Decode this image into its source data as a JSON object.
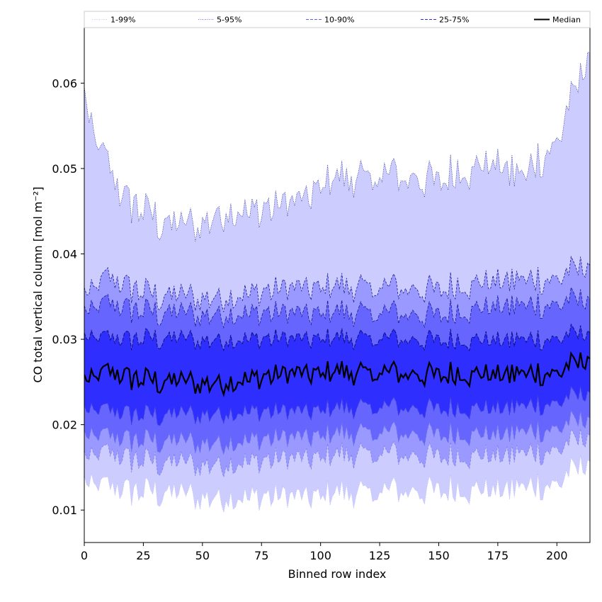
{
  "chart_data": {
    "type": "area",
    "title": "",
    "xlabel": "Binned row index",
    "ylabel": "CO total vertical column [mol m⁻²]",
    "xlim": [
      0,
      214
    ],
    "ylim": [
      0.0062,
      0.0665
    ],
    "xticks": [
      0,
      25,
      50,
      75,
      100,
      125,
      150,
      175,
      200
    ],
    "yticks": [
      0.01,
      0.02,
      0.03,
      0.04,
      0.05,
      0.06
    ],
    "ytick_labels": [
      "0.01",
      "0.02",
      "0.03",
      "0.04",
      "0.05",
      "0.06"
    ],
    "grid": false,
    "legend_position": "top",
    "legend": [
      {
        "label": "1-99%",
        "style": "dotted",
        "color": "#c8c8f0"
      },
      {
        "label": "5-95%",
        "style": "dotted",
        "color": "#7070e0"
      },
      {
        "label": "10-90%",
        "style": "dashed",
        "color": "#6060e8"
      },
      {
        "label": "25-75%",
        "style": "dashed",
        "color": "#3030d8"
      },
      {
        "label": "Median",
        "style": "solid",
        "color": "#000000"
      }
    ],
    "band_colors": [
      "#ccccff",
      "#9999ff",
      "#6666ff",
      "#2e2eff"
    ],
    "median_color": "#000000",
    "series_profiles": [
      {
        "name": "p99",
        "x": [
          0,
          5,
          15,
          30,
          40,
          60,
          75,
          90,
          100,
          120,
          150,
          175,
          185,
          200,
          214
        ],
        "y": [
          0.058,
          0.053,
          0.047,
          0.044,
          0.043,
          0.045,
          0.045,
          0.046,
          0.048,
          0.049,
          0.049,
          0.051,
          0.049,
          0.053,
          0.064
        ]
      },
      {
        "name": "p95",
        "x": [
          0,
          10,
          30,
          60,
          90,
          120,
          150,
          175,
          200,
          214
        ],
        "y": [
          0.035,
          0.037,
          0.035,
          0.035,
          0.036,
          0.036,
          0.036,
          0.037,
          0.037,
          0.039
        ]
      },
      {
        "name": "p90",
        "x": [
          0,
          10,
          30,
          60,
          90,
          120,
          150,
          175,
          200,
          214
        ],
        "y": [
          0.033,
          0.034,
          0.033,
          0.033,
          0.033,
          0.033,
          0.033,
          0.034,
          0.034,
          0.035
        ]
      },
      {
        "name": "p75",
        "x": [
          0,
          10,
          30,
          60,
          90,
          120,
          150,
          175,
          200,
          214
        ],
        "y": [
          0.03,
          0.03,
          0.03,
          0.03,
          0.03,
          0.03,
          0.03,
          0.03,
          0.03,
          0.031
        ]
      },
      {
        "name": "median",
        "x": [
          0,
          10,
          30,
          60,
          90,
          120,
          150,
          175,
          200,
          214
        ],
        "y": [
          0.025,
          0.026,
          0.025,
          0.025,
          0.026,
          0.026,
          0.026,
          0.026,
          0.026,
          0.028
        ]
      },
      {
        "name": "p25",
        "x": [
          0,
          10,
          30,
          60,
          90,
          120,
          150,
          175,
          200,
          214
        ],
        "y": [
          0.0215,
          0.0215,
          0.021,
          0.0215,
          0.0215,
          0.022,
          0.022,
          0.022,
          0.0225,
          0.024
        ]
      },
      {
        "name": "p10",
        "x": [
          0,
          10,
          30,
          60,
          90,
          120,
          150,
          175,
          200,
          214
        ],
        "y": [
          0.0185,
          0.0185,
          0.018,
          0.018,
          0.0185,
          0.019,
          0.019,
          0.019,
          0.0195,
          0.021
        ]
      },
      {
        "name": "p5",
        "x": [
          0,
          10,
          30,
          60,
          90,
          120,
          150,
          175,
          200,
          214
        ],
        "y": [
          0.016,
          0.0165,
          0.0155,
          0.0155,
          0.016,
          0.0165,
          0.0165,
          0.0165,
          0.017,
          0.019
        ]
      },
      {
        "name": "p1",
        "x": [
          0,
          10,
          30,
          60,
          90,
          120,
          150,
          175,
          200,
          214
        ],
        "y": [
          0.013,
          0.0125,
          0.012,
          0.0115,
          0.0115,
          0.012,
          0.0125,
          0.0125,
          0.013,
          0.016
        ]
      }
    ]
  }
}
